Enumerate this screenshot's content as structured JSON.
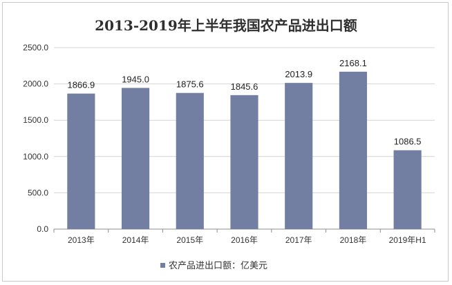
{
  "chart_data": {
    "type": "bar",
    "title": "2013-2019年上半年我国农产品进出口额",
    "categories": [
      "2013年",
      "2014年",
      "2015年",
      "2016年",
      "2017年",
      "2018年",
      "2019年H1"
    ],
    "series": [
      {
        "name": "农产品进出口额：亿美元",
        "values": [
          1866.9,
          1945.0,
          1875.6,
          1845.6,
          2013.9,
          2168.1,
          1086.5
        ],
        "value_labels": [
          "1866.9",
          "1945.0",
          "1875.6",
          "1845.6",
          "2013.9",
          "2168.1",
          "1086.5"
        ]
      }
    ],
    "ylim": [
      0,
      2500
    ],
    "yticks": [
      "0.0",
      "500.0",
      "1000.0",
      "1500.0",
      "2000.0",
      "2500.0"
    ],
    "grid": true,
    "legend_position": "bottom",
    "bar_color": "#737ea3"
  }
}
